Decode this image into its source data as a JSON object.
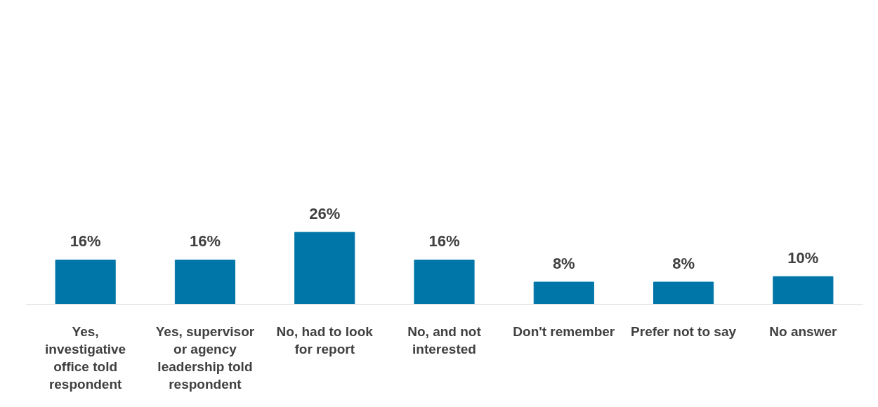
{
  "chart_data": {
    "type": "bar",
    "categories": [
      "Yes, investigative office told respondent",
      "Yes, supervisor or agency leadership told respondent",
      "No, had to look for report",
      "No, and not interested",
      "Don't remember",
      "Prefer not to say",
      "No answer"
    ],
    "values": [
      16,
      16,
      26,
      16,
      8,
      8,
      10
    ],
    "value_labels": [
      "16%",
      "16%",
      "26%",
      "16%",
      "8%",
      "8%",
      "10%"
    ],
    "color": "#0076a8"
  }
}
